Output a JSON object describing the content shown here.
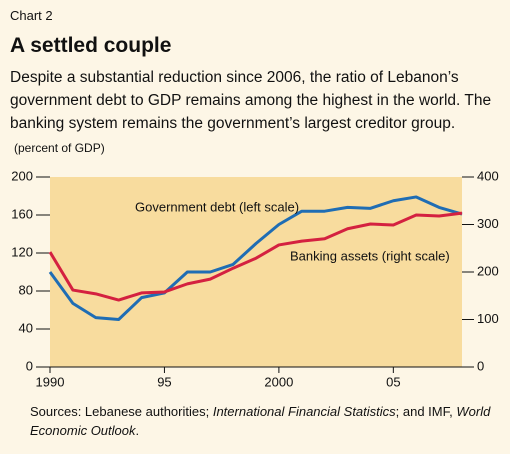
{
  "chart_data": {
    "type": "line",
    "kicker": "Chart 2",
    "title": "A settled couple",
    "subtitle": "Despite a substantial reduction since 2006, the ratio of Lebanon’s government debt to GDP remains among the highest in the world. The banking system remains the government’s largest creditor group.",
    "ylabel": "(percent of GDP)",
    "x": [
      1990,
      1991,
      1992,
      1993,
      1994,
      1995,
      1996,
      1997,
      1998,
      1999,
      2000,
      2001,
      2002,
      2003,
      2004,
      2005,
      2006,
      2007,
      2008
    ],
    "series": [
      {
        "name": "Government debt (left scale)",
        "color": "#1f6db4",
        "axis": "y",
        "values": [
          100,
          67,
          52,
          50,
          73,
          78,
          100,
          100,
          108,
          130,
          150,
          164,
          164,
          168,
          167,
          175,
          179,
          168,
          161
        ]
      },
      {
        "name": "Banking assets (right scale)",
        "color": "#d42140",
        "axis": "y2",
        "values": [
          242,
          162,
          154,
          141,
          156,
          158,
          175,
          185,
          208,
          229,
          257,
          265,
          270,
          291,
          301,
          299,
          320,
          318,
          324
        ]
      }
    ],
    "xlim": [
      1990,
      2008
    ],
    "xticks": [
      1990,
      {
        "value": 1995,
        "label": "95"
      },
      2000,
      {
        "value": 2005,
        "label": "05"
      }
    ],
    "ylim": [
      0,
      200
    ],
    "yticks": [
      0,
      40,
      80,
      120,
      160,
      200
    ],
    "y2lim": [
      0,
      400
    ],
    "y2ticks": [
      0,
      100,
      200,
      300,
      400
    ],
    "source": [
      "Sources: Lebanese authorities; ",
      "International Financial Statistics",
      "; and IMF, ",
      "World Economic Outlook",
      "."
    ]
  }
}
